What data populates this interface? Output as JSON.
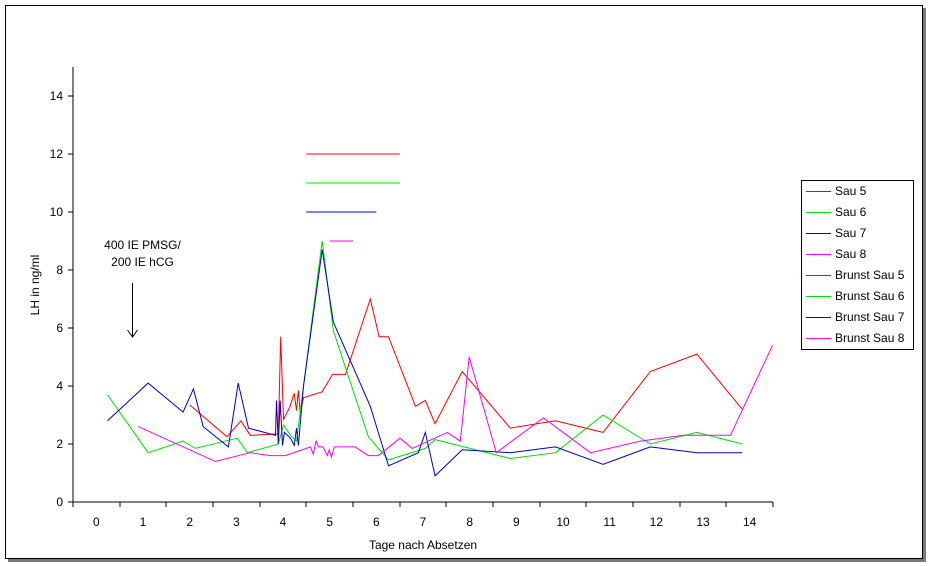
{
  "chart_data": {
    "type": "line",
    "xlabel": "Tage nach Absetzen",
    "ylabel": "LH in ng/ml",
    "xlim": [
      -0.5,
      14.5
    ],
    "ylim": [
      0,
      15
    ],
    "xticks": [
      0,
      1,
      2,
      3,
      4,
      5,
      6,
      7,
      8,
      9,
      10,
      11,
      12,
      13,
      14
    ],
    "yticks": [
      0,
      2,
      4,
      6,
      8,
      10,
      12,
      14
    ],
    "grid": false,
    "legend": "right",
    "series": [
      {
        "name": "Sau 5",
        "color": "#ff0000",
        "points": [
          [
            2.0,
            3.35
          ],
          [
            2.8,
            2.25
          ],
          [
            3.1,
            2.8
          ],
          [
            3.3,
            2.3
          ],
          [
            3.9,
            2.35
          ],
          [
            3.95,
            5.7
          ],
          [
            4.01,
            2.85
          ],
          [
            4.14,
            3.25
          ],
          [
            4.24,
            3.75
          ],
          [
            4.29,
            3.15
          ],
          [
            4.33,
            3.85
          ],
          [
            4.37,
            3.05
          ],
          [
            4.44,
            3.6
          ],
          [
            4.84,
            3.8
          ],
          [
            5.06,
            4.4
          ],
          [
            5.34,
            4.4
          ],
          [
            5.87,
            7.0
          ],
          [
            6.06,
            5.7
          ],
          [
            6.26,
            5.7
          ],
          [
            6.84,
            3.3
          ],
          [
            7.05,
            3.5
          ],
          [
            7.26,
            2.7
          ],
          [
            7.84,
            4.5
          ],
          [
            8.87,
            2.55
          ],
          [
            9.84,
            2.8
          ],
          [
            10.86,
            2.4
          ],
          [
            11.87,
            4.5
          ],
          [
            12.87,
            5.1
          ],
          [
            13.84,
            3.2
          ]
        ]
      },
      {
        "name": "Sau 6",
        "color": "#00e000",
        "points": [
          [
            0.24,
            3.7
          ],
          [
            1.11,
            1.7
          ],
          [
            1.86,
            2.1
          ],
          [
            2.12,
            1.85
          ],
          [
            3.02,
            2.2
          ],
          [
            3.24,
            1.7
          ],
          [
            3.9,
            2.0
          ],
          [
            4.01,
            2.65
          ],
          [
            4.16,
            2.3
          ],
          [
            4.29,
            2.1
          ],
          [
            4.44,
            4.0
          ],
          [
            4.84,
            9.0
          ],
          [
            5.08,
            5.9
          ],
          [
            5.83,
            2.25
          ],
          [
            6.26,
            1.45
          ],
          [
            7.05,
            1.85
          ],
          [
            7.26,
            2.15
          ],
          [
            8.01,
            1.85
          ],
          [
            8.87,
            1.5
          ],
          [
            9.84,
            1.7
          ],
          [
            10.86,
            3.0
          ],
          [
            11.87,
            2.0
          ],
          [
            12.87,
            2.4
          ],
          [
            13.84,
            2.0
          ]
        ]
      },
      {
        "name": "Sau 7",
        "color": "#0000c8",
        "points": [
          [
            0.24,
            2.8
          ],
          [
            1.11,
            4.1
          ],
          [
            1.86,
            3.1
          ],
          [
            2.08,
            3.9
          ],
          [
            2.29,
            2.6
          ],
          [
            2.83,
            1.9
          ],
          [
            3.04,
            4.1
          ],
          [
            3.26,
            2.55
          ],
          [
            3.84,
            2.3
          ],
          [
            3.86,
            3.5
          ],
          [
            3.9,
            2.0
          ],
          [
            3.94,
            3.5
          ],
          [
            3.99,
            1.95
          ],
          [
            4.03,
            2.4
          ],
          [
            4.16,
            2.2
          ],
          [
            4.24,
            1.95
          ],
          [
            4.29,
            2.55
          ],
          [
            4.33,
            1.95
          ],
          [
            4.44,
            4.0
          ],
          [
            4.84,
            8.7
          ],
          [
            5.08,
            6.2
          ],
          [
            5.87,
            3.3
          ],
          [
            6.26,
            1.25
          ],
          [
            6.9,
            1.7
          ],
          [
            7.05,
            2.4
          ],
          [
            7.26,
            0.9
          ],
          [
            7.84,
            1.8
          ],
          [
            8.87,
            1.7
          ],
          [
            9.84,
            1.9
          ],
          [
            10.86,
            1.3
          ],
          [
            11.87,
            1.9
          ],
          [
            12.87,
            1.7
          ],
          [
            13.84,
            1.7
          ]
        ]
      },
      {
        "name": "Sau 8",
        "color": "#ff00ff",
        "points": [
          [
            0.9,
            2.6
          ],
          [
            2.55,
            1.4
          ],
          [
            3.3,
            1.7
          ],
          [
            3.73,
            1.6
          ],
          [
            4.05,
            1.6
          ],
          [
            4.59,
            1.9
          ],
          [
            4.65,
            1.65
          ],
          [
            4.71,
            2.1
          ],
          [
            4.76,
            1.9
          ],
          [
            4.86,
            1.9
          ],
          [
            4.95,
            1.6
          ],
          [
            4.99,
            1.8
          ],
          [
            5.04,
            1.55
          ],
          [
            5.1,
            1.9
          ],
          [
            5.55,
            1.9
          ],
          [
            5.83,
            1.6
          ],
          [
            6.04,
            1.6
          ],
          [
            6.51,
            2.2
          ],
          [
            6.77,
            1.85
          ],
          [
            7.52,
            2.4
          ],
          [
            7.8,
            2.1
          ],
          [
            7.99,
            5.0
          ],
          [
            8.57,
            1.7
          ],
          [
            9.58,
            2.9
          ],
          [
            10.59,
            1.7
          ],
          [
            11.66,
            2.1
          ],
          [
            12.58,
            2.3
          ],
          [
            13.59,
            2.3
          ],
          [
            14.49,
            5.4
          ]
        ]
      },
      {
        "name": "Brunst Sau 5",
        "color": "#ff0000",
        "points": [
          [
            4.5,
            12
          ],
          [
            6.5,
            12
          ]
        ]
      },
      {
        "name": "Brunst Sau 6",
        "color": "#00e000",
        "points": [
          [
            4.5,
            11
          ],
          [
            6.5,
            11
          ]
        ]
      },
      {
        "name": "Brunst Sau 7",
        "color": "#0000c8",
        "points": [
          [
            4.5,
            10
          ],
          [
            6.0,
            10
          ]
        ]
      },
      {
        "name": "Brunst Sau 8",
        "color": "#ff00ff",
        "points": [
          [
            5.0,
            9
          ],
          [
            5.5,
            9
          ]
        ]
      }
    ],
    "annotations": [
      {
        "text": [
          "400 IE PMSG/",
          "200 IE hCG"
        ],
        "x": 0.77
      }
    ]
  }
}
